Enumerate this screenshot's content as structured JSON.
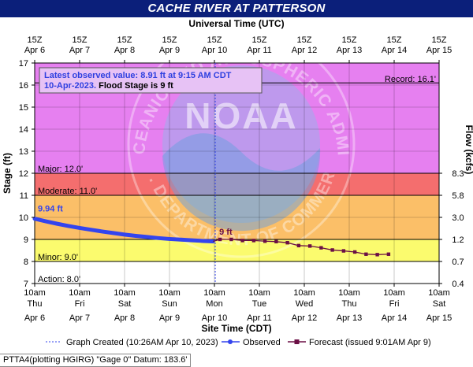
{
  "header": {
    "title": "CACHE RIVER AT PATTERSON"
  },
  "chart_data": {
    "type": "line",
    "top_axis_title": "Universal Time (UTC)",
    "top_ticks": [
      {
        "hour": "15Z",
        "date": "Apr 6"
      },
      {
        "hour": "15Z",
        "date": "Apr 7"
      },
      {
        "hour": "15Z",
        "date": "Apr 8"
      },
      {
        "hour": "15Z",
        "date": "Apr 9"
      },
      {
        "hour": "15Z",
        "date": "Apr 10"
      },
      {
        "hour": "15Z",
        "date": "Apr 11"
      },
      {
        "hour": "15Z",
        "date": "Apr 12"
      },
      {
        "hour": "15Z",
        "date": "Apr 13"
      },
      {
        "hour": "15Z",
        "date": "Apr 14"
      },
      {
        "hour": "15Z",
        "date": "Apr 15"
      }
    ],
    "xlabel": "Site Time (CDT)",
    "bottom_ticks": [
      {
        "time": "10am",
        "day": "Thu",
        "date": "Apr 6"
      },
      {
        "time": "10am",
        "day": "Fri",
        "date": "Apr 7"
      },
      {
        "time": "10am",
        "day": "Sat",
        "date": "Apr 8"
      },
      {
        "time": "10am",
        "day": "Sun",
        "date": "Apr 9"
      },
      {
        "time": "10am",
        "day": "Mon",
        "date": "Apr 10"
      },
      {
        "time": "10am",
        "day": "Tue",
        "date": "Apr 11"
      },
      {
        "time": "10am",
        "day": "Wed",
        "date": "Apr 12"
      },
      {
        "time": "10am",
        "day": "Thu",
        "date": "Apr 13"
      },
      {
        "time": "10am",
        "day": "Fri",
        "date": "Apr 14"
      },
      {
        "time": "10am",
        "day": "Sat",
        "date": "Apr 15"
      }
    ],
    "xlim": [
      "2023-04-06 10:00",
      "2023-04-15 10:00"
    ],
    "ylabel": "Stage (ft)",
    "ylim": [
      7,
      17
    ],
    "yticks": [
      7,
      8,
      9,
      10,
      11,
      12,
      13,
      14,
      15,
      16,
      17
    ],
    "y2label": "Flow (kcfs)",
    "y2ticks": [
      {
        "stage": 8,
        "label": "0.7"
      },
      {
        "stage": 9,
        "label": "1.2"
      },
      {
        "stage": 10,
        "label": "3.0"
      },
      {
        "stage": 11,
        "label": "5.8"
      },
      {
        "stage": 12,
        "label": "8.3"
      },
      {
        "stage": 7,
        "label": "0.4"
      }
    ],
    "stage_bands": [
      {
        "name": "Major",
        "label": "Major: 12.0'",
        "from": 12,
        "to": 17,
        "color": "#e680f0"
      },
      {
        "name": "Moderate",
        "label": "Moderate: 11.0'",
        "from": 11,
        "to": 12,
        "color": "#f46e6e"
      },
      {
        "name": "Flood",
        "from": 9,
        "to": 11,
        "color": "#fbbf68"
      },
      {
        "name": "Minor",
        "label": "Minor: 9.0'",
        "from": 8,
        "to": 9,
        "color": "#fbfb6e"
      },
      {
        "name": "Action",
        "label": "Action: 8.0'",
        "from": 7,
        "to": 8,
        "color": "#ffffff"
      }
    ],
    "record": {
      "label": "Record: 16.1'",
      "value": 16.1
    },
    "series": [
      {
        "name": "Observed",
        "color": "#3344ee",
        "x": [
          "2023-04-06 10:00",
          "2023-04-06 16:00",
          "2023-04-06 22:00",
          "2023-04-07 04:00",
          "2023-04-07 10:00",
          "2023-04-07 16:00",
          "2023-04-07 22:00",
          "2023-04-08 04:00",
          "2023-04-08 10:00",
          "2023-04-08 16:00",
          "2023-04-08 22:00",
          "2023-04-09 04:00",
          "2023-04-09 10:00",
          "2023-04-09 16:00",
          "2023-04-09 22:00",
          "2023-04-10 04:00",
          "2023-04-10 09:15"
        ],
        "y": [
          9.94,
          9.82,
          9.71,
          9.61,
          9.52,
          9.44,
          9.36,
          9.29,
          9.22,
          9.16,
          9.11,
          9.06,
          9.02,
          8.99,
          8.96,
          8.93,
          8.91
        ]
      },
      {
        "name": "Forecast",
        "color": "#6b0f45",
        "x": [
          "2023-04-10 13:00",
          "2023-04-10 19:00",
          "2023-04-11 01:00",
          "2023-04-11 07:00",
          "2023-04-11 13:00",
          "2023-04-11 19:00",
          "2023-04-12 01:00",
          "2023-04-12 07:00",
          "2023-04-12 13:00",
          "2023-04-12 19:00",
          "2023-04-13 01:00",
          "2023-04-13 07:00",
          "2023-04-13 13:00",
          "2023-04-13 19:00",
          "2023-04-14 01:00",
          "2023-04-14 07:00"
        ],
        "y": [
          9.0,
          9.0,
          8.95,
          8.95,
          8.92,
          8.9,
          8.85,
          8.72,
          8.7,
          8.62,
          8.52,
          8.48,
          8.43,
          8.33,
          8.31,
          8.33
        ]
      }
    ],
    "annotations": {
      "observed_start_label": "9.94 ft",
      "forecast_start_label": "9 ft",
      "latest_line1": "Latest observed value: 8.91 ft at 9:15 AM CDT",
      "latest_line2_date": "10-Apr-2023.",
      "latest_line2_flood": " Flood Stage is 9 ft",
      "now_x": "2023-04-10 10:26"
    },
    "watermark": {
      "text": "NOAA",
      "ring_left": "NATIONAL OCEANIC",
      "ring_top": "AND ATMOSPHERIC ADMINISTRATION",
      "ring_bottom": "U.S. DEPARTMENT OF COMMERCE"
    },
    "legend": {
      "placement": "bottom",
      "created": "Graph Created (10:26AM Apr 10, 2023)",
      "observed": "Observed",
      "forecast": "Forecast (issued 9:01AM Apr 9)"
    }
  },
  "footer": {
    "note": "PTTA4(plotting HGIRG) \"Gage 0\" Datum: 183.6'"
  }
}
